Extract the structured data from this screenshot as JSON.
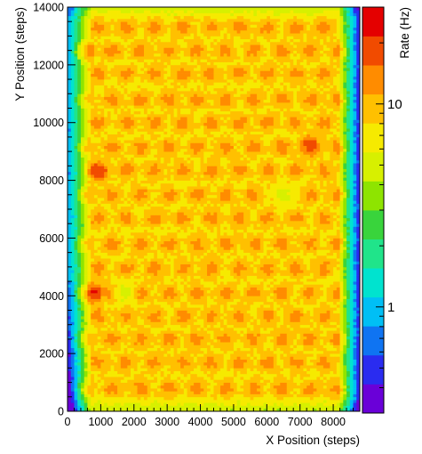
{
  "chart_data": {
    "type": "heatmap",
    "xlabel": "X Position (steps)",
    "ylabel": "Y Position (steps)",
    "zlabel": "Rate (Hz)",
    "xlim": [
      0,
      8800
    ],
    "ylim": [
      0,
      14000
    ],
    "x_ticks": [
      0,
      1000,
      2000,
      3000,
      4000,
      5000,
      6000,
      7000,
      8000
    ],
    "x_tick_labels": [
      "0",
      "1000",
      "2000",
      "3000",
      "4000",
      "5000",
      "6000",
      "7000",
      "8000"
    ],
    "y_ticks": [
      0,
      2000,
      4000,
      6000,
      8000,
      10000,
      12000,
      14000
    ],
    "y_tick_labels": [
      "0",
      "2000",
      "4000",
      "6000",
      "8000",
      "10000",
      "12000",
      "14000"
    ],
    "z_scale": "log",
    "zlim": [
      0.3,
      30
    ],
    "z_tick_labels": [
      {
        "value": 1,
        "label": "1"
      },
      {
        "value": 10,
        "label": "10"
      }
    ],
    "palette": [
      "#6a00d8",
      "#2a2cf0",
      "#0f74f2",
      "#00bff5",
      "#00e3cf",
      "#20e48a",
      "#39d43c",
      "#8ee400",
      "#d7f000",
      "#f6ea00",
      "#ffc000",
      "#ff8c00",
      "#f14b00",
      "#e40000"
    ],
    "background_rate_hz": 7.5,
    "hotspot_peak_rate_hz": 14,
    "hotspot_grid": {
      "row_y_centers": [
        800,
        1700,
        2500,
        3300,
        4100,
        4950,
        5800,
        6700,
        7500,
        8350,
        9150,
        10000,
        10800,
        11700,
        12500,
        13300
      ],
      "column_spacing_x": 850,
      "odd_row_offset_x": 425,
      "x_range": [
        500,
        8200
      ]
    },
    "notable_spots": [
      {
        "x": 800,
        "y": 4100,
        "rate_hz": 22
      },
      {
        "x": 900,
        "y": 8300,
        "rate_hz": 20
      },
      {
        "x": 7300,
        "y": 9200,
        "rate_hz": 19
      },
      {
        "x": 500,
        "y": 12500,
        "rate_hz": 17
      },
      {
        "x": 1700,
        "y": 4100,
        "rate_hz": 4.5
      },
      {
        "x": 6500,
        "y": 7500,
        "rate_hz": 4.5
      }
    ],
    "edge_falloff": "rate drops toward the left and right edges of the scanned region (down to about 0.5 Hz at lower-left)"
  }
}
